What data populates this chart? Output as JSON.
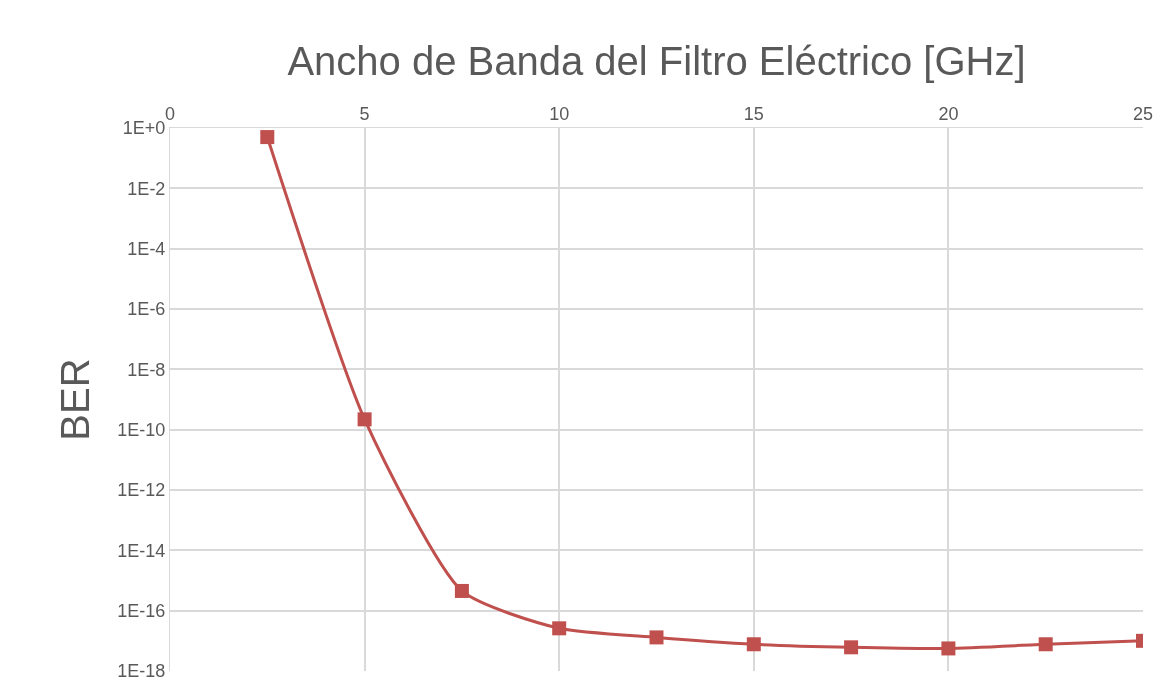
{
  "chart_data": {
    "type": "line",
    "xlabel": "Ancho de Banda del Filtro Eléctrico [GHz]",
    "ylabel": "BER",
    "x": [
      2.5,
      5,
      7.5,
      10,
      12.5,
      15,
      17.5,
      20,
      22.5,
      25
    ],
    "series": [
      {
        "color": "#c0504d",
        "values": [
          0.5,
          2.2e-10,
          4.5e-16,
          2.6e-17,
          1.3e-17,
          7.7e-18,
          6.1e-18,
          5.6e-18,
          7.7e-18,
          1e-17
        ]
      }
    ],
    "log": "y",
    "xlim": [
      0,
      25
    ],
    "xticks": [
      0,
      5,
      10,
      15,
      20,
      25
    ],
    "ylim": [
      1e-18,
      1
    ],
    "yticks": [
      {
        "value": 1,
        "label": "1E+0"
      },
      {
        "value": 0.01,
        "label": "1E-2"
      },
      {
        "value": 0.0001,
        "label": "1E-4"
      },
      {
        "value": 1e-06,
        "label": "1E-6"
      },
      {
        "value": 1e-08,
        "label": "1E-8"
      },
      {
        "value": 1e-10,
        "label": "1E-10"
      },
      {
        "value": 1e-12,
        "label": "1E-12"
      },
      {
        "value": 1e-14,
        "label": "1E-14"
      },
      {
        "value": 1e-16,
        "label": "1E-16"
      },
      {
        "value": 1e-18,
        "label": "1E-18"
      }
    ],
    "grid": true,
    "marker": "square",
    "line_style": "solid",
    "legend": false
  }
}
